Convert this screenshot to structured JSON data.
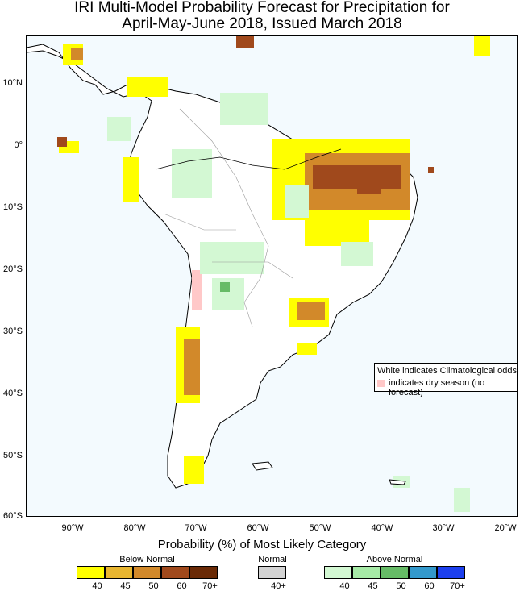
{
  "title_line1": "IRI Multi-Model Probability Forecast for Precipitation for",
  "title_line2": "April-May-June 2018, Issued March 2018",
  "lat_labels": [
    "10°N",
    "0°",
    "10°S",
    "20°S",
    "30°S",
    "40°S",
    "50°S",
    "60°S"
  ],
  "lon_labels": [
    "90°W",
    "80°W",
    "70°W",
    "60°W",
    "50°W",
    "40°W",
    "30°W",
    "20°W"
  ],
  "legend": {
    "title": "Probability (%) of Most Likely Category",
    "below_label": "Below Normal",
    "normal_label": "Normal",
    "above_label": "Above Normal",
    "below_ticks": [
      "40",
      "45",
      "50",
      "60",
      "70+"
    ],
    "normal_tick": "40+",
    "above_ticks": [
      "40",
      "45",
      "50",
      "60",
      "70+"
    ],
    "below_colors": [
      "#ffff00",
      "#e8b630",
      "#d2892a",
      "#a0491c",
      "#6a2a06"
    ],
    "normal_color": "#d3d3d3",
    "above_colors": [
      "#d3f8d3",
      "#a6eaa6",
      "#66bb66",
      "#3399cc",
      "#1c3fee"
    ]
  },
  "note": {
    "line1": "White indicates Climatological odds",
    "line2": "indicates dry season (no forecast)",
    "dry_color": "#ffc8c8"
  },
  "colors": {
    "ocean": "#f3fafe",
    "land": "#ffffff",
    "coast": "#000000"
  }
}
